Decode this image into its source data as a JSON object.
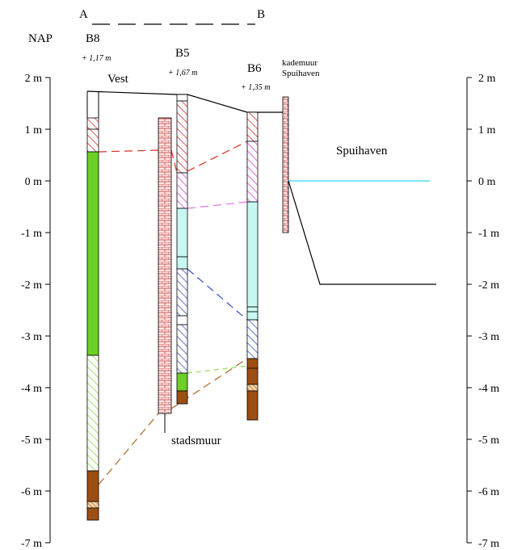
{
  "section": {
    "start": "A",
    "end": "B"
  },
  "datum_label": "NAP",
  "axis": {
    "unit": "m",
    "ticks": [
      "2 m",
      "1 m",
      "0 m",
      "-1 m",
      "-2 m",
      "-3 m",
      "-4 m",
      "-5 m",
      "-6 m",
      "-7 m"
    ]
  },
  "boreholes": [
    {
      "id": "B8",
      "elevation": "+ 1,17 m"
    },
    {
      "id": "B5",
      "elevation": "+ 1,67 m"
    },
    {
      "id": "B6",
      "elevation": "+ 1,35 m"
    }
  ],
  "labels": {
    "vest": "Vest",
    "quay_wall_line1": "kademuur",
    "quay_wall_line2": "Spuihaven",
    "harbour": "Spuihaven",
    "city_wall": "stadsmuur"
  },
  "colors": {
    "brick": "#d0605a",
    "brick_fill": "#fce4e4",
    "green": "#6ccf25",
    "light_green": "#8be04a",
    "cyan": "#c9f7f1",
    "magenta": "#e070e6",
    "blue": "#3a4fc8",
    "brown": "#9c4f14",
    "red_dash": "#e03020",
    "water": "#7ee6f2"
  }
}
